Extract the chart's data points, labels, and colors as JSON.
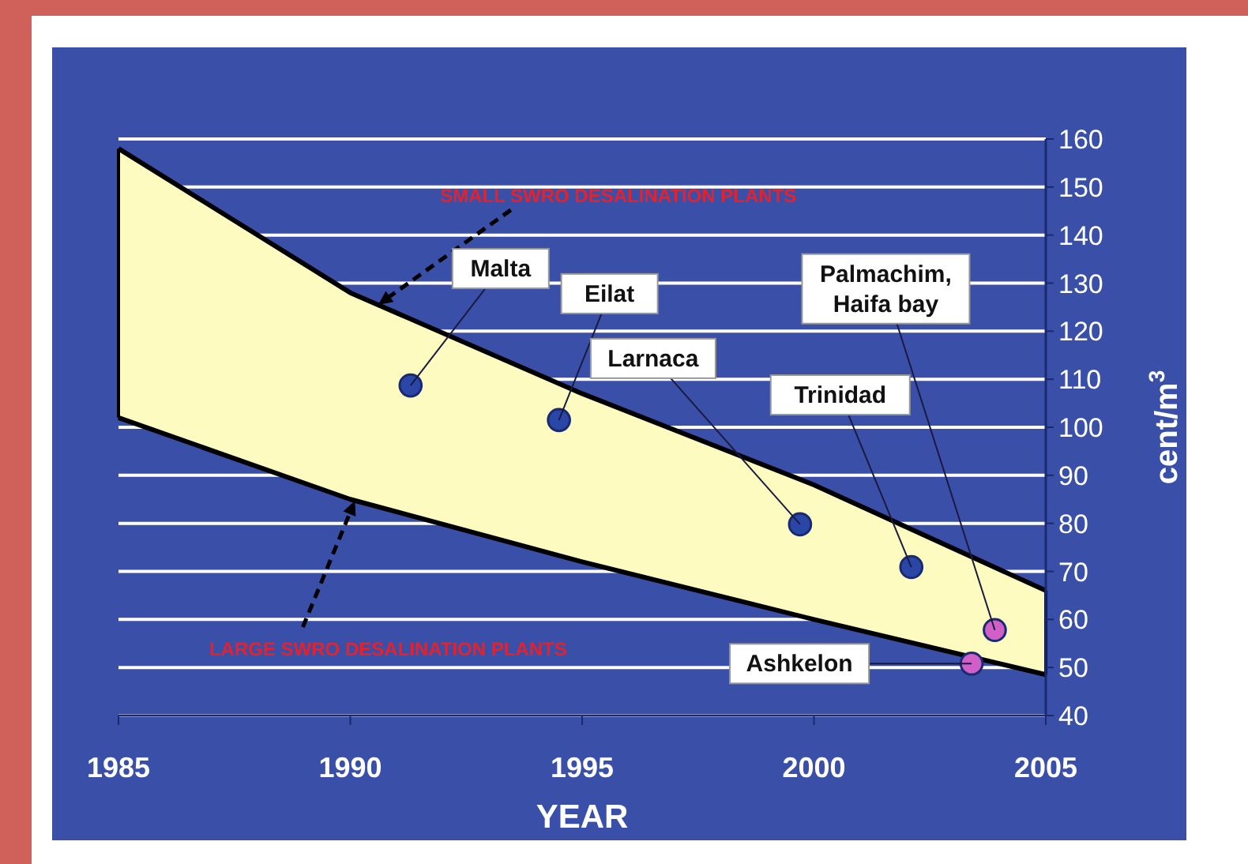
{
  "chart_data": {
    "type": "area",
    "xlabel": "YEAR",
    "ylabel": "cent/m$^{3}$",
    "x": [
      1985,
      1990,
      1995,
      2000,
      2005
    ],
    "series": [
      {
        "color": "#fdfbc0",
        "values": [
          158,
          128,
          107,
          88,
          66
        ]
      },
      {
        "type": "line",
        "color": "#000000",
        "values": [
          102,
          85,
          72,
          60,
          48.5
        ]
      },
      {
        "type": "scatter",
        "color": "#2a47a8",
        "x": [
          1991.3,
          1994.5,
          1999.7,
          2002.1
        ],
        "values": [
          108.7,
          101.5,
          79.8,
          70.9
        ]
      },
      {
        "type": "scatter",
        "color": "#d060c8",
        "x": [
          2003.4,
          2003.9
        ],
        "values": [
          50.8,
          57.8
        ]
      }
    ],
    "annotations": [
      {
        "text": "SMALL SWRO DESALINATION PLANTS",
        "x": 1990.6,
        "y": 125.5
      },
      {
        "text": "LARGE SWRO DESALINATION PLANTS",
        "x": 1990.1,
        "y": 84.7
      },
      {
        "text": "Malta",
        "x": 1991.3,
        "y": 108.7
      },
      {
        "text": "Eilat",
        "x": 1994.5,
        "y": 101.5
      },
      {
        "text": "Larnaca",
        "x": 1999.7,
        "y": 79.8
      },
      {
        "text": "Trinidad",
        "x": 2002.1,
        "y": 70.9
      },
      {
        "text": "Palmachim,\nHaifa bay",
        "x": 2003.9,
        "y": 57.8
      },
      {
        "text": "Ashkelon",
        "x": 2003.4,
        "y": 50.8
      }
    ],
    "xlim": [
      1985,
      2005
    ],
    "xticks": [
      1985,
      1990,
      1995,
      2000,
      2005
    ],
    "ylim": [
      40,
      160
    ],
    "yticks": [
      40,
      50,
      60,
      70,
      80,
      90,
      100,
      110,
      120,
      130,
      140,
      150,
      160
    ],
    "grid": "y",
    "line_style": "solid"
  }
}
